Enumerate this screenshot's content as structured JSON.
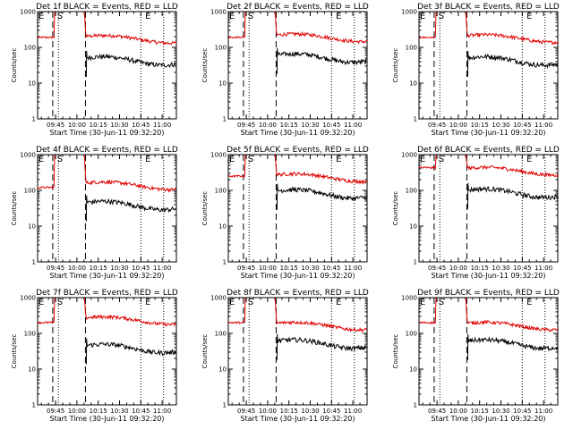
{
  "figure": {
    "panels": [
      {
        "title": "Det 1f BLACK = Events, RED = LLD",
        "red_level": 200,
        "black_level": 50,
        "pre_red": 190
      },
      {
        "title": "Det 2f BLACK = Events, RED = LLD",
        "red_level": 220,
        "black_level": 60,
        "pre_red": 190
      },
      {
        "title": "Det 3f BLACK = Events, RED = LLD",
        "red_level": 210,
        "black_level": 50,
        "pre_red": 190
      },
      {
        "title": "Det 4f BLACK = Events, RED = LLD",
        "red_level": 160,
        "black_level": 45,
        "pre_red": 120
      },
      {
        "title": "Det 5f BLACK = Events, RED = LLD",
        "red_level": 270,
        "black_level": 95,
        "pre_red": 250
      },
      {
        "title": "Det 6f BLACK = Events, RED = LLD",
        "red_level": 410,
        "black_level": 100,
        "pre_red": 430
      },
      {
        "title": "Det 7f BLACK = Events, RED = LLD",
        "red_level": 270,
        "black_level": 45,
        "pre_red": 200
      },
      {
        "title": "Det 8f BLACK = Events, RED = LLD",
        "red_level": 190,
        "black_level": 60,
        "pre_red": 200
      },
      {
        "title": "Det 9f BLACK = Events, RED = LLD",
        "red_level": 190,
        "black_level": 60,
        "pre_red": 200
      }
    ],
    "ylabel": "Counts/sec",
    "xlabel": "Start Time (30-Jun-11 09:32:20)",
    "xticks": [
      "09:45",
      "10:00",
      "10:15",
      "10:30",
      "10:45",
      "11:00"
    ],
    "yticks": [
      "1",
      "10",
      "100",
      "1000"
    ],
    "markers": [
      "E",
      "S",
      "E"
    ]
  },
  "chart_data": {
    "type": "line",
    "yscale": "log",
    "ylim": [
      1,
      1000
    ],
    "xlim": [
      "09:32:20",
      "11:10"
    ],
    "series": [
      {
        "name": "Events",
        "color": "#000000"
      },
      {
        "name": "LLD",
        "color": "#e00000"
      }
    ],
    "vertical_lines": {
      "dashed": [
        "09:43",
        "10:06"
      ],
      "dotted": [
        "09:47",
        "10:45",
        "11:01"
      ]
    }
  }
}
